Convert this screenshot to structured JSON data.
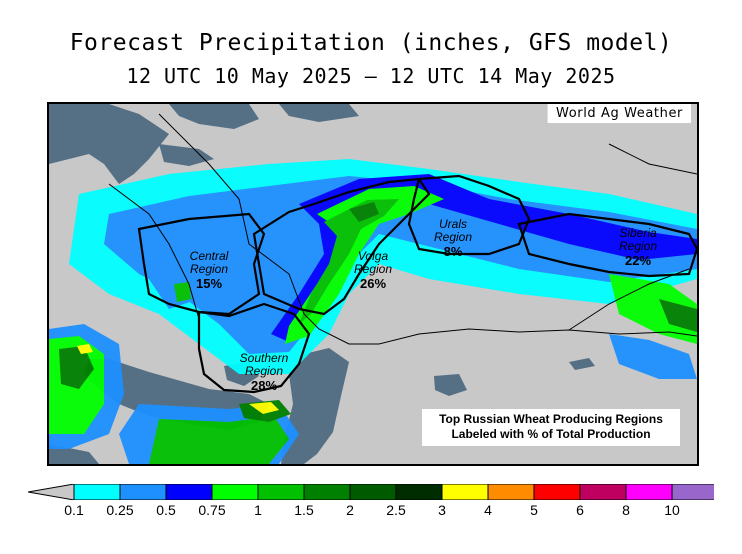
{
  "title": {
    "line1": "Forecast Precipitation (inches, GFS model)",
    "line2": "12 UTC 10 May 2025 – 12 UTC 14 May 2025"
  },
  "credit": "World Ag Weather",
  "note": {
    "line1": "Top Russian Wheat Producing Regions",
    "line2": "Labeled with % of Total Production"
  },
  "regions": [
    {
      "name_line1": "Central",
      "name_line2": "Region",
      "percent": "15%"
    },
    {
      "name_line1": "Volga",
      "name_line2": "Region",
      "percent": "26%"
    },
    {
      "name_line1": "Urals",
      "name_line2": "Region",
      "percent": "8%"
    },
    {
      "name_line1": "Siberia",
      "name_line2": "Region",
      "percent": "22%"
    },
    {
      "name_line1": "Southern",
      "name_line2": "Region",
      "percent": "28%"
    }
  ],
  "legend": {
    "unit": "inches",
    "labels": [
      "0.1",
      "0.25",
      "0.5",
      "0.75",
      "1",
      "1.5",
      "2",
      "2.5",
      "3",
      "4",
      "5",
      "6",
      "8",
      "10"
    ],
    "colors": [
      "#00ffff",
      "#1e90ff",
      "#0000ff",
      "#00ff00",
      "#00c000",
      "#008000",
      "#005a00",
      "#002d00",
      "#ffff00",
      "#ff8c00",
      "#ff0000",
      "#c00060",
      "#ff00ff",
      "#9966cc"
    ],
    "below_min_color": "#c8c8c8",
    "above_max_color": "#ffffff"
  },
  "map_colors": {
    "land": "#c8c8c8",
    "water": "#556f85",
    "borders": "#000000"
  }
}
